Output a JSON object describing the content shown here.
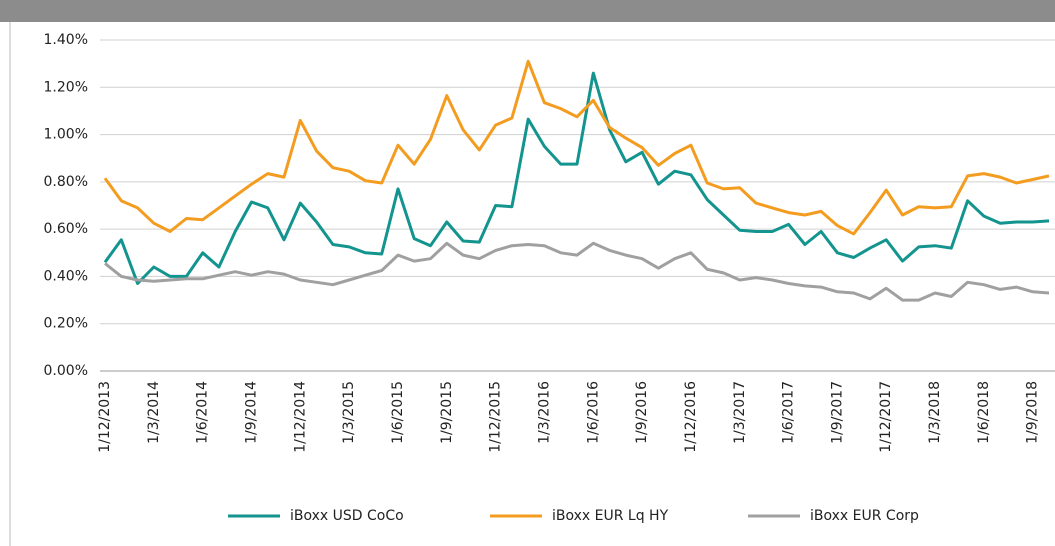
{
  "chart_data": {
    "type": "line",
    "categories": [
      "1/12/2013",
      null,
      null,
      "1/3/2014",
      null,
      null,
      "1/6/2014",
      null,
      null,
      "1/9/2014",
      null,
      null,
      "1/12/2014",
      null,
      null,
      "1/3/2015",
      null,
      null,
      "1/6/2015",
      null,
      null,
      "1/9/2015",
      null,
      null,
      "1/12/2015",
      null,
      null,
      "1/3/2016",
      null,
      null,
      "1/6/2016",
      null,
      null,
      "1/9/2016",
      null,
      null,
      "1/12/2016",
      null,
      null,
      "1/3/2017",
      null,
      null,
      "1/6/2017",
      null,
      null,
      "1/9/2017",
      null,
      null,
      "1/12/2017",
      null,
      null,
      "1/3/2018",
      null,
      null,
      "1/6/2018",
      null,
      null,
      "1/9/2018",
      null
    ],
    "series": [
      {
        "name": "iBoxx USD CoCo",
        "color": "#13948f",
        "values": [
          0.46,
          0.555,
          0.37,
          0.44,
          0.4,
          0.4,
          0.5,
          0.44,
          0.59,
          0.715,
          0.69,
          0.555,
          0.71,
          0.63,
          0.535,
          0.525,
          0.5,
          0.495,
          0.77,
          0.56,
          0.53,
          0.63,
          0.55,
          0.545,
          0.7,
          0.695,
          1.065,
          0.95,
          0.875,
          0.875,
          1.26,
          1.02,
          0.885,
          0.925,
          0.79,
          0.845,
          0.83,
          0.725,
          0.66,
          0.595,
          0.59,
          0.59,
          0.62,
          0.535,
          0.59,
          0.5,
          0.48,
          0.52,
          0.555,
          0.465,
          0.525,
          0.53,
          0.52,
          0.72,
          0.655,
          0.625,
          0.63,
          0.63,
          0.635
        ]
      },
      {
        "name": "iBoxx EUR Lq HY",
        "color": "#f39c1f",
        "values": [
          0.815,
          0.72,
          0.69,
          0.625,
          0.59,
          0.645,
          0.64,
          0.69,
          0.74,
          0.79,
          0.835,
          0.82,
          1.06,
          0.93,
          0.86,
          0.845,
          0.805,
          0.795,
          0.955,
          0.875,
          0.98,
          1.165,
          1.02,
          0.935,
          1.04,
          1.07,
          1.31,
          1.135,
          1.11,
          1.075,
          1.145,
          1.03,
          0.985,
          0.945,
          0.87,
          0.92,
          0.955,
          0.795,
          0.77,
          0.775,
          0.71,
          0.69,
          0.67,
          0.66,
          0.675,
          0.615,
          0.58,
          0.67,
          0.765,
          0.66,
          0.695,
          0.69,
          0.695,
          0.825,
          0.835,
          0.82,
          0.795,
          0.81,
          0.825
        ]
      },
      {
        "name": "iBoxx EUR Corp",
        "color": "#a0a0a0",
        "values": [
          0.455,
          0.4,
          0.385,
          0.38,
          0.385,
          0.39,
          0.39,
          0.405,
          0.42,
          0.405,
          0.42,
          0.41,
          0.385,
          0.375,
          0.365,
          0.385,
          0.405,
          0.425,
          0.49,
          0.465,
          0.475,
          0.54,
          0.49,
          0.475,
          0.51,
          0.53,
          0.535,
          0.53,
          0.5,
          0.49,
          0.54,
          0.51,
          0.49,
          0.475,
          0.435,
          0.475,
          0.5,
          0.43,
          0.415,
          0.385,
          0.395,
          0.385,
          0.37,
          0.36,
          0.355,
          0.335,
          0.33,
          0.305,
          0.35,
          0.3,
          0.3,
          0.33,
          0.315,
          0.375,
          0.365,
          0.345,
          0.355,
          0.335,
          0.33
        ]
      }
    ],
    "ylim": [
      0,
      1.4
    ],
    "yticks": [
      {
        "value": 0,
        "label": "0.00%"
      },
      {
        "value": 0.2,
        "label": "0.20%"
      },
      {
        "value": 0.4,
        "label": "0.40%"
      },
      {
        "value": 0.6,
        "label": "0.60%"
      },
      {
        "value": 0.8,
        "label": "0.80%"
      },
      {
        "value": 1.0,
        "label": "1.00%"
      },
      {
        "value": 1.2,
        "label": "1.20%"
      },
      {
        "value": 1.4,
        "label": "1.40%"
      }
    ],
    "grid": true,
    "legend": "bottom"
  }
}
